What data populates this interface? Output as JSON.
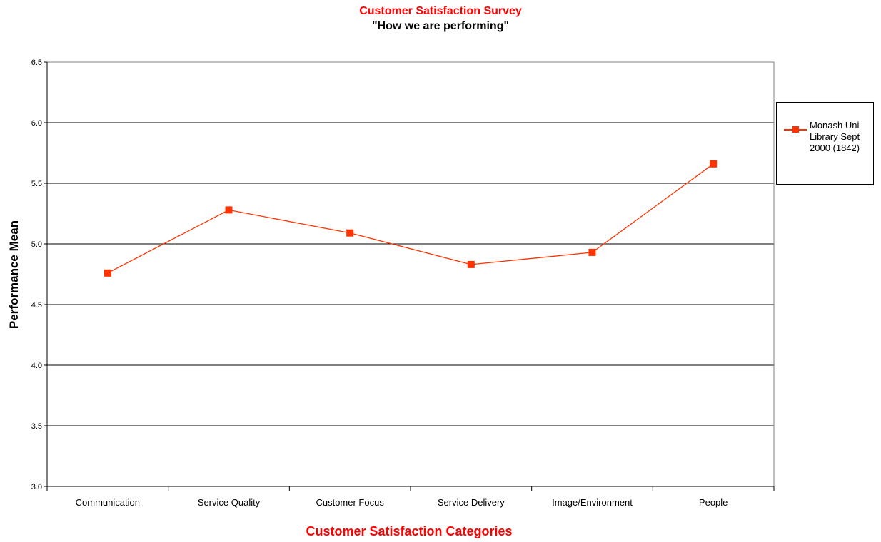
{
  "colors": {
    "title": "#ff0000",
    "subtitle": "#000000",
    "xlabel": "#ff0000",
    "series": "#ff3300",
    "grid": "#000000"
  },
  "chart_data": {
    "type": "line",
    "title": "Customer Satisfaction Survey",
    "subtitle": "\"How we are performing\"",
    "xlabel": "Customer Satisfaction Categories",
    "ylabel": "Performance Mean",
    "categories": [
      "Communication",
      "Service Quality",
      "Customer Focus",
      "Service Delivery",
      "Image/Environment",
      "People"
    ],
    "ylim": [
      3.0,
      6.5
    ],
    "yticks": [
      "3.0",
      "3.5",
      "4.0",
      "4.5",
      "5.0",
      "5.5",
      "6.0",
      "6.5"
    ],
    "grid": true,
    "legend_position": "right",
    "series": [
      {
        "name": "Monash Uni Library Sept 2000 (1842)",
        "values": [
          4.76,
          5.28,
          5.09,
          4.83,
          4.93,
          5.66
        ]
      }
    ]
  }
}
